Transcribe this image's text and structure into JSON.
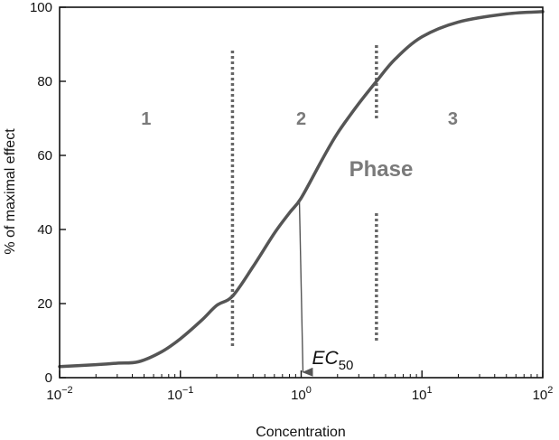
{
  "chart_data": {
    "type": "line",
    "xscale": "log",
    "xlim": [
      0.01,
      100
    ],
    "ylim": [
      0,
      100
    ],
    "xlabel": "Concentration",
    "ylabel": "% of maximal effect",
    "y_ticks": [
      0,
      20,
      40,
      60,
      80,
      100
    ],
    "x_ticks": [
      {
        "value": 0.01,
        "base": "10",
        "exp": "−2"
      },
      {
        "value": 0.1,
        "base": "10",
        "exp": "−1"
      },
      {
        "value": 1,
        "base": "10",
        "exp": "0"
      },
      {
        "value": 10,
        "base": "10",
        "exp": "1"
      },
      {
        "value": 100,
        "base": "10",
        "exp": "2"
      }
    ],
    "series": [
      {
        "x": [
          0.01,
          0.02,
          0.03,
          0.045,
          0.07,
          0.1,
          0.15,
          0.2,
          0.27,
          0.4,
          0.6,
          0.8,
          1,
          1.5,
          2,
          3,
          4.2,
          6,
          10,
          20,
          50,
          100
        ],
        "y": [
          3,
          3.5,
          3.9,
          4.3,
          7,
          10.5,
          15.5,
          19.5,
          22,
          30,
          39,
          44.5,
          48.5,
          59,
          66,
          74,
          80,
          86,
          92,
          96,
          98.2,
          98.8
        ]
      }
    ],
    "boundaries": [
      0.27,
      4.2
    ],
    "ec50": {
      "x": 1,
      "y": 48.5,
      "label": "EC",
      "subscript": "50"
    },
    "phases": [
      {
        "label": "1",
        "x": 0.052,
        "y": 70
      },
      {
        "label": "2",
        "x": 1,
        "y": 70
      },
      {
        "label": "3",
        "x": 18,
        "y": 70
      }
    ],
    "phase_title": "Phase",
    "colors": {
      "curve": "#555555",
      "dots": "#666666",
      "phase_text": "#7a7a7a",
      "axis": "#111111"
    }
  }
}
